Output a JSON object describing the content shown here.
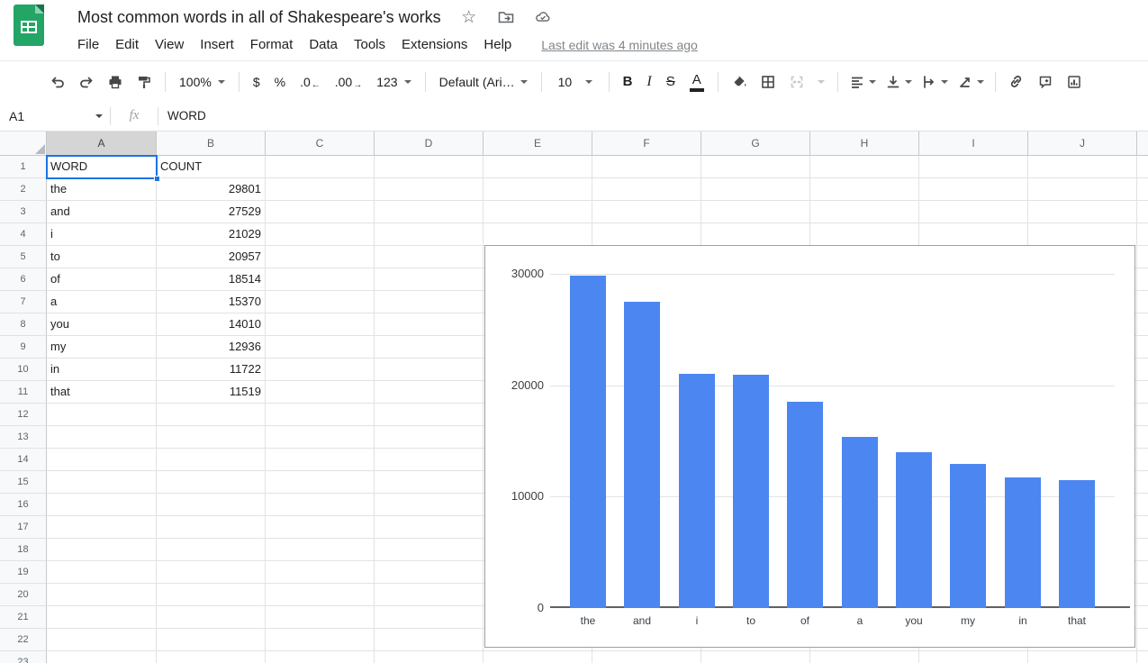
{
  "header": {
    "title": "Most common words in all of Shakespeare's works",
    "menu_items": [
      "File",
      "Edit",
      "View",
      "Insert",
      "Format",
      "Data",
      "Tools",
      "Extensions",
      "Help"
    ],
    "last_edit_label": "Last edit was 4 minutes ago"
  },
  "toolbar": {
    "zoom_value": "100%",
    "currency_label": "$",
    "percent_label": "%",
    "decrease_decimal_label": ".0",
    "increase_decimal_label": ".00",
    "number_format_label": "123",
    "font_name": "Default (Ari…",
    "font_size": "10",
    "bold_label": "B",
    "italic_label": "I",
    "strikethrough_label": "S",
    "text_color_label": "A"
  },
  "formula_bar": {
    "cell_reference": "A1",
    "fx_label": "fx",
    "formula_value": "WORD"
  },
  "sheet": {
    "column_headers": [
      "A",
      "B",
      "C",
      "D",
      "E",
      "F",
      "G",
      "H",
      "I",
      "J"
    ],
    "row_count": 23,
    "selected_cell": "A1",
    "highlighted_column": "A",
    "cells": {
      "header_row": [
        "WORD",
        "COUNT"
      ],
      "data_rows": [
        [
          "the",
          "29801"
        ],
        [
          "and",
          "27529"
        ],
        [
          "i",
          "21029"
        ],
        [
          "to",
          "20957"
        ],
        [
          "of",
          "18514"
        ],
        [
          "a",
          "15370"
        ],
        [
          "you",
          "14010"
        ],
        [
          "my",
          "12936"
        ],
        [
          "in",
          "11722"
        ],
        [
          "that",
          "11519"
        ]
      ]
    }
  },
  "chart_data": {
    "type": "bar",
    "title": "",
    "xlabel": "",
    "ylabel": "",
    "categories": [
      "the",
      "and",
      "i",
      "to",
      "of",
      "a",
      "you",
      "my",
      "in",
      "that"
    ],
    "values": [
      29801,
      27529,
      21029,
      20957,
      18514,
      15370,
      14010,
      12936,
      11722,
      11519
    ],
    "ylim": [
      0,
      30000
    ],
    "yticks": [
      0,
      10000,
      20000,
      30000
    ],
    "grid": true,
    "legend_position": "none",
    "bar_color": "#4c86f1"
  },
  "colors": {
    "selection_blue": "#1a73e8",
    "bar_blue": "#4c86f1",
    "sheets_green": "#23a566",
    "header_highlight": "#d5d5d5"
  }
}
